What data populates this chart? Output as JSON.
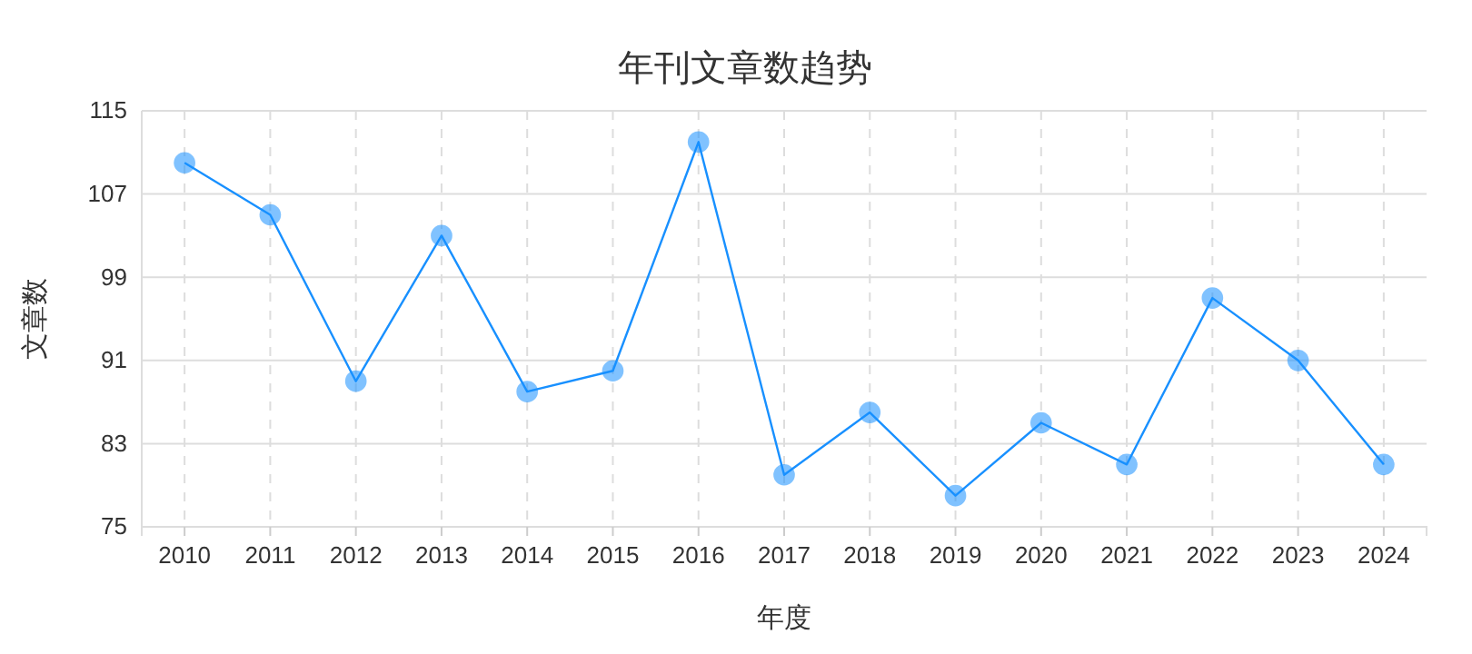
{
  "chart_data": {
    "type": "line",
    "title": "年刊文章数趋势",
    "xlabel": "年度",
    "ylabel": "文章数",
    "categories": [
      "2010",
      "2011",
      "2012",
      "2013",
      "2014",
      "2015",
      "2016",
      "2017",
      "2018",
      "2019",
      "2020",
      "2021",
      "2022",
      "2023",
      "2024"
    ],
    "series": [
      {
        "color": "#1890ff",
        "values": [
          110,
          105,
          89,
          103,
          88,
          90,
          112,
          80,
          86,
          78,
          85,
          81,
          97,
          91,
          81
        ]
      }
    ],
    "ylim": [
      75,
      115
    ],
    "yticks": [
      75,
      83,
      91,
      99,
      107,
      115
    ],
    "grid": true,
    "marker": "circle",
    "line_style": "solid"
  }
}
